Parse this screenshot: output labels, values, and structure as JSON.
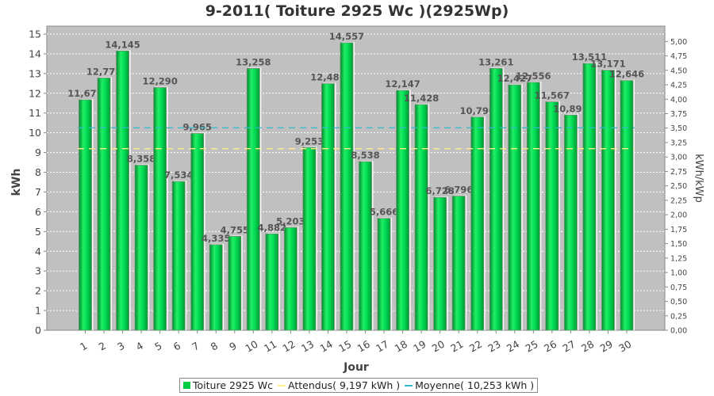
{
  "chart_data": {
    "type": "bar",
    "title": "9-2011( Toiture 2925 Wc )(2925Wp)",
    "xlabel": "Jour",
    "ylabel": "kWh",
    "ylabel_right": "kWh/kWp",
    "categories": [
      "1",
      "2",
      "3",
      "4",
      "5",
      "6",
      "7",
      "8",
      "9",
      "10",
      "11",
      "12",
      "13",
      "14",
      "15",
      "16",
      "17",
      "18",
      "19",
      "20",
      "21",
      "22",
      "23",
      "24",
      "25",
      "26",
      "27",
      "28",
      "29",
      "30"
    ],
    "series": [
      {
        "name": "Toiture 2925 Wc",
        "values": [
          11.672,
          12.773,
          14.145,
          8.358,
          12.29,
          7.534,
          9.965,
          4.335,
          4.755,
          13.258,
          4.882,
          5.203,
          9.253,
          12.486,
          14.557,
          8.538,
          5.666,
          12.147,
          11.428,
          6.728,
          6.796,
          10.796,
          13.261,
          12.427,
          12.556,
          11.567,
          10.897,
          13.511,
          13.171,
          12.646
        ],
        "labels": [
          "11,672",
          "12,773",
          "14,145",
          "8,358",
          "12,290",
          "7,534",
          "9,965",
          "4,335",
          "4,755",
          "13,258",
          "4,882",
          "5,203",
          "9,253",
          "12,486",
          "14,557",
          "8,538",
          "5,666",
          "12,147",
          "11,428",
          "6,728",
          "6,796",
          "10,796",
          "13,261",
          "12,427",
          "12,556",
          "11,567",
          "10,897",
          "13,511",
          "13,171",
          "12,646"
        ],
        "color": "#00cc44"
      }
    ],
    "reference_lines": [
      {
        "name": "Attendus( 9,197 kWh )",
        "value": 9.197,
        "color": "#ffee88"
      },
      {
        "name": "Moyenne( 10,253 kWh )",
        "value": 10.253,
        "color": "#33bbcc"
      }
    ],
    "ylim": [
      0,
      15.4
    ],
    "yticks": [
      0,
      1,
      2,
      3,
      4,
      5,
      6,
      7,
      8,
      9,
      10,
      11,
      12,
      13,
      14,
      15
    ],
    "y2ticks": [
      {
        "v": 0,
        "label": "0,00"
      },
      {
        "v": 0.25,
        "label": "0,25"
      },
      {
        "v": 0.5,
        "label": "0,50"
      },
      {
        "v": 0.75,
        "label": "0,75"
      },
      {
        "v": 1.0,
        "label": "1,00"
      },
      {
        "v": 1.25,
        "label": "1,25"
      },
      {
        "v": 1.5,
        "label": "1,50"
      },
      {
        "v": 1.75,
        "label": "1,75"
      },
      {
        "v": 2.0,
        "label": "2,00"
      },
      {
        "v": 2.25,
        "label": "2,25"
      },
      {
        "v": 2.5,
        "label": "2,50"
      },
      {
        "v": 2.75,
        "label": "2,75"
      },
      {
        "v": 3.0,
        "label": "3,00"
      },
      {
        "v": 3.25,
        "label": "3,25"
      },
      {
        "v": 3.5,
        "label": "3,50"
      },
      {
        "v": 3.75,
        "label": "3,75"
      },
      {
        "v": 4.0,
        "label": "4,00"
      },
      {
        "v": 4.25,
        "label": "4,25"
      },
      {
        "v": 4.5,
        "label": "4,50"
      },
      {
        "v": 4.75,
        "label": "4,75"
      },
      {
        "v": 5.0,
        "label": "5,00"
      }
    ],
    "y2_per_kwh": 0.3419,
    "grid": true,
    "legend_position": "bottom",
    "colors": {
      "plot_background": "#c0c0c0",
      "grid": "#ffffff",
      "bar": "#00cc44"
    }
  },
  "legend": {
    "items": [
      {
        "label": "Toiture 2925 Wc",
        "color": "#00cc44",
        "kind": "box"
      },
      {
        "label": "Attendus( 9,197 kWh )",
        "color": "#ffee88",
        "kind": "line"
      },
      {
        "label": "Moyenne( 10,253 kWh )",
        "color": "#33bbcc",
        "kind": "line"
      }
    ]
  }
}
